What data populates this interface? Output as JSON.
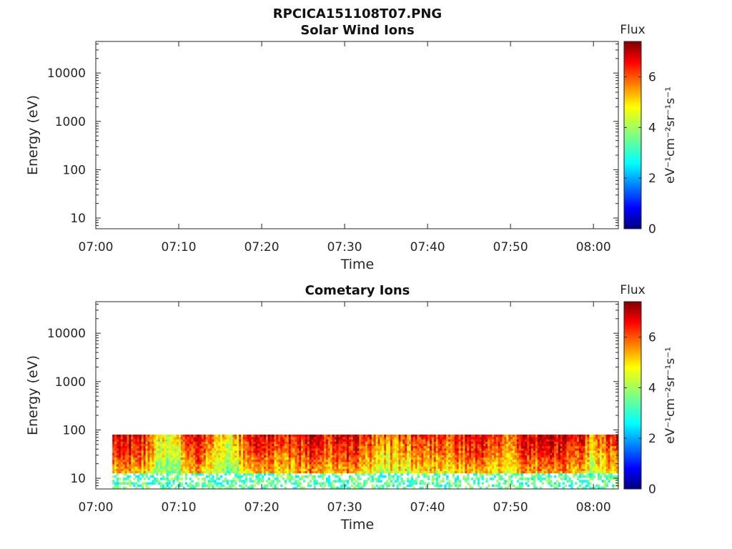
{
  "figure_title": "RPCICA151108T07.PNG",
  "chart_data": [
    {
      "type": "heatmap",
      "title": "Solar Wind Ions",
      "xlabel": "Time",
      "ylabel": "Energy (eV)",
      "x_ticks": [
        "07:00",
        "07:10",
        "07:20",
        "07:30",
        "07:40",
        "07:50",
        "08:00"
      ],
      "y_ticks": [
        "10",
        "100",
        "1000",
        "10000"
      ],
      "y_scale": "log",
      "ylim": [
        6,
        45000
      ],
      "xlim": [
        "07:00",
        "08:03"
      ],
      "colorbar": {
        "title": "Flux",
        "label": "eV⁻¹cm⁻²sr⁻¹s⁻¹",
        "ticks": [
          "0",
          "2",
          "4",
          "6"
        ],
        "range": [
          0,
          7.4
        ]
      },
      "data": "empty"
    },
    {
      "type": "heatmap",
      "title": "Cometary Ions",
      "xlabel": "Time",
      "ylabel": "Energy (eV)",
      "x_ticks": [
        "07:00",
        "07:10",
        "07:20",
        "07:30",
        "07:40",
        "07:50",
        "08:00"
      ],
      "y_ticks": [
        "10",
        "100",
        "1000",
        "10000"
      ],
      "y_scale": "log",
      "ylim": [
        6,
        45000
      ],
      "xlim": [
        "07:00",
        "08:03"
      ],
      "colorbar": {
        "title": "Flux",
        "label": "eV⁻¹cm⁻²sr⁻¹s⁻¹",
        "ticks": [
          "0",
          "2",
          "4",
          "6"
        ],
        "range": [
          0,
          7.4
        ]
      },
      "data_extent": {
        "time_start": "07:02",
        "time_end": "08:03",
        "energy_min": 6,
        "energy_max": 80
      },
      "flux_profile": {
        "times": [
          "07:02",
          "07:04",
          "07:06",
          "07:08",
          "07:10",
          "07:12",
          "07:14",
          "07:16",
          "07:18",
          "07:20",
          "07:22",
          "07:24",
          "07:26",
          "07:28",
          "07:30",
          "07:32",
          "07:34",
          "07:36",
          "07:38",
          "07:40",
          "07:42",
          "07:44",
          "07:46",
          "07:48",
          "07:50",
          "07:52",
          "07:54",
          "07:56",
          "07:58",
          "08:00",
          "08:02"
        ],
        "peak_flux": [
          6.5,
          7.0,
          6.2,
          4.6,
          5.2,
          6.8,
          5.8,
          4.4,
          6.0,
          6.8,
          6.6,
          6.4,
          7.0,
          6.2,
          7.0,
          6.6,
          5.8,
          5.6,
          6.0,
          6.2,
          6.0,
          6.6,
          6.8,
          6.4,
          5.4,
          7.0,
          6.4,
          7.0,
          6.6,
          5.4,
          6.2
        ]
      }
    }
  ]
}
